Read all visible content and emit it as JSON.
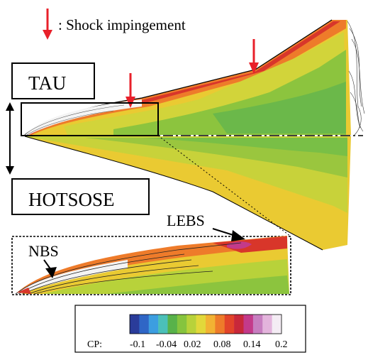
{
  "legend": {
    "shock_symbol_text": ": Shock impingement",
    "shock_marker_color": "#e8202a"
  },
  "labels": {
    "tau": "TAU",
    "hotsose": "HOTSOSE",
    "nbs": "NBS",
    "lebs": "LEBS"
  },
  "colorbar": {
    "variable_label": "CP:",
    "tick_labels": [
      "-0.1",
      "-0.04",
      "0.02",
      "0.08",
      "0.14",
      "0.2"
    ],
    "colors": [
      "#2a3c9a",
      "#2f66c6",
      "#3c9ee0",
      "#4bc0b8",
      "#58b24a",
      "#86c43e",
      "#b8d23a",
      "#e2d83a",
      "#f2b233",
      "#ee7b2a",
      "#e2442a",
      "#c8283a",
      "#c33a8a",
      "#c77ec0",
      "#e3b4dc",
      "#f4ecf4"
    ]
  }
}
